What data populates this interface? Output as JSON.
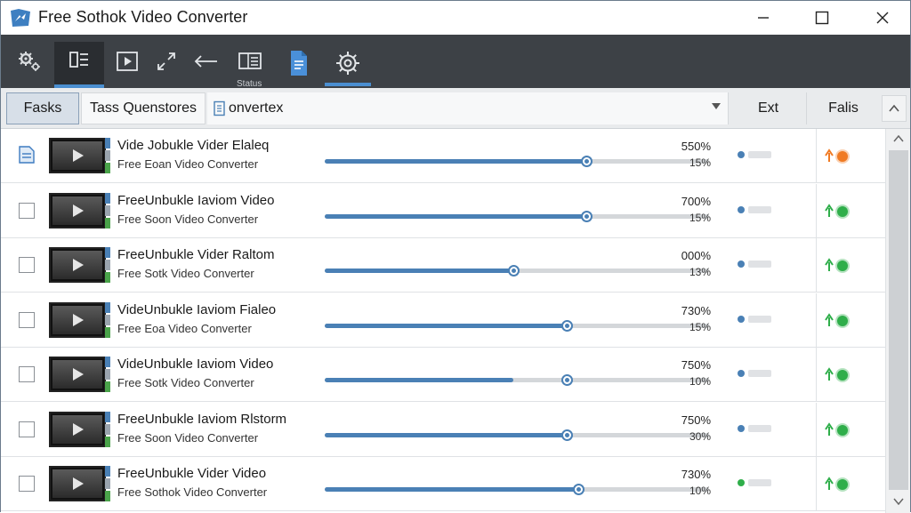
{
  "window": {
    "title": "Free Sothok Video Converter",
    "controls": [
      "minimize-icon",
      "maximize-icon",
      "close-icon"
    ]
  },
  "toolbar": {
    "items": [
      {
        "icon": "gear-add-icon"
      },
      {
        "icon": "queue-list-icon",
        "active": true
      },
      {
        "icon": "play-icon"
      },
      {
        "icon": "expand-icon"
      },
      {
        "icon": "back-arrow-icon"
      },
      {
        "icon": "status-panel-icon",
        "label": "Status"
      },
      {
        "icon": "document-icon"
      },
      {
        "icon": "settings-gear-icon"
      }
    ],
    "status_label": "Status"
  },
  "tabs": {
    "tasks": "Fasks",
    "queue": "Tass Quenstores",
    "converter": "onvertex",
    "ext": "Ext",
    "files": "Falis"
  },
  "colors": {
    "accent": "#4a80b5",
    "toolbar_bg": "#3d4146",
    "status_orange": "#f07a22",
    "status_green": "#2fae4a"
  },
  "rows": [
    {
      "name": "Vide Jobukle Vider Elaleq",
      "sub": "Free Eoan Video Converter",
      "progress": 0.68,
      "pct_top": "550%",
      "pct_bottom": "15%",
      "ext_dot": "#4a80b5",
      "status": "orange",
      "selected_icon": true
    },
    {
      "name": "FreeUnbukle Iaviom Video",
      "sub": "Free Soon Video Converter",
      "progress": 0.68,
      "pct_top": "700%",
      "pct_bottom": "15%",
      "ext_dot": "#4a80b5",
      "status": "green"
    },
    {
      "name": "FreeUnbukle Vider Raltom",
      "sub": "Free Sotk Video Converter",
      "progress": 0.49,
      "pct_top": "000%",
      "pct_bottom": "13%",
      "ext_dot": "#4a80b5",
      "status": "green"
    },
    {
      "name": "VideUnbukle Iaviom Fialeo",
      "sub": "Free Eoa Video Converter",
      "progress": 0.63,
      "pct_top": "730%",
      "pct_bottom": "15%",
      "ext_dot": "#4a80b5",
      "status": "green"
    },
    {
      "name": "VideUnbukle Iaviom Video",
      "sub": "Free Sotk Video Converter",
      "progress": 0.49,
      "pct_top": "750%",
      "pct_bottom": "10%",
      "ext_dot": "#4a80b5",
      "status": "green",
      "knob_at": 0.63
    },
    {
      "name": "FreeUnbukle Iaviom Rlstorm",
      "sub": "Free Soon Video Converter",
      "progress": 0.63,
      "pct_top": "750%",
      "pct_bottom": "30%",
      "ext_dot": "#4a80b5",
      "status": "green"
    },
    {
      "name": "FreeUnbukle Vider Video",
      "sub": "Free Sothok Video Converter",
      "progress": 0.66,
      "pct_top": "730%",
      "pct_bottom": "10%",
      "ext_dot": "#2fae4a",
      "status": "green"
    }
  ]
}
